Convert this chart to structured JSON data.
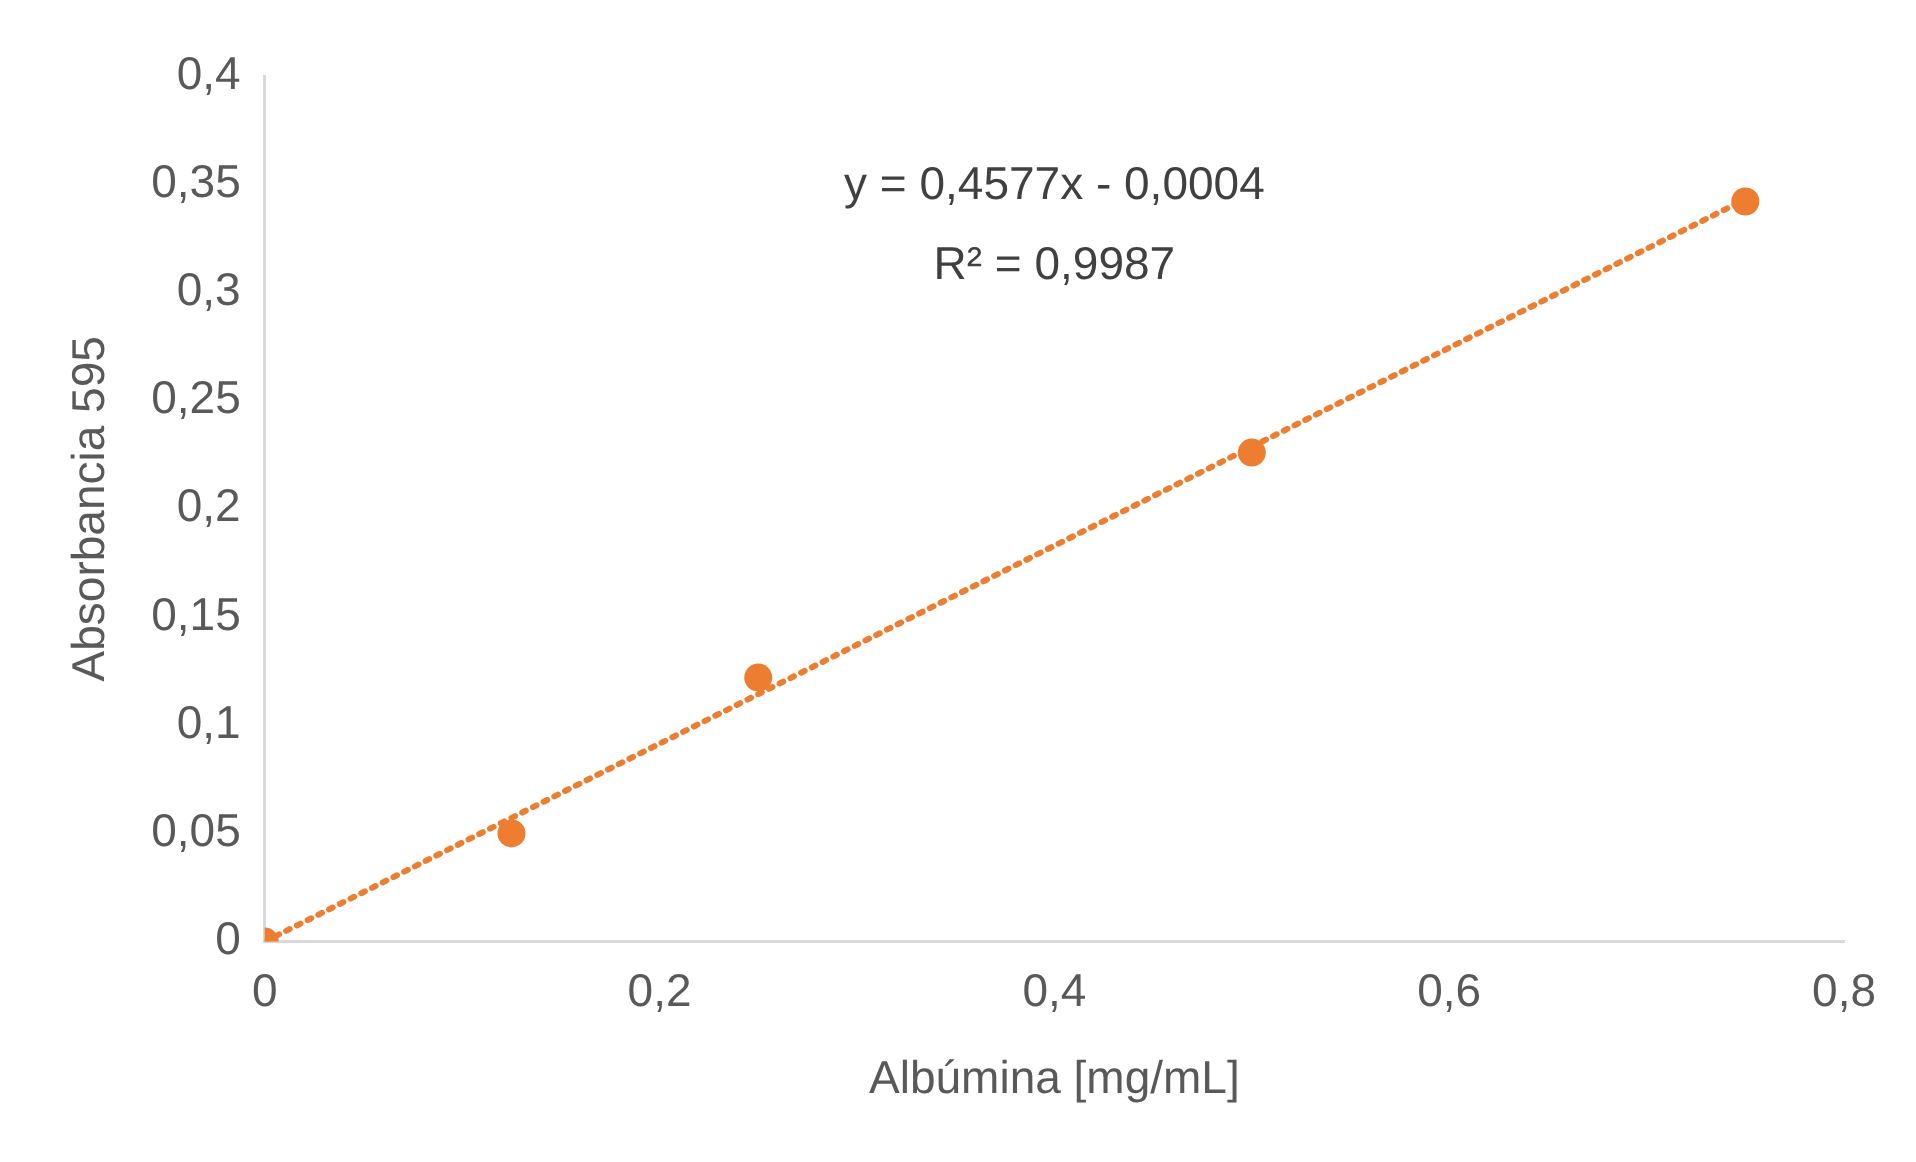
{
  "chart_data": {
    "type": "scatter",
    "xlabel": "Albúmina [mg/mL]",
    "ylabel": "Absorbancia 595",
    "series": [
      {
        "type": "scatter",
        "color": "#ed7d31",
        "x": [
          0,
          0.125,
          0.25,
          0.5,
          0.75
        ],
        "values": [
          0,
          0.05,
          0.122,
          0.226,
          0.342
        ],
        "marker": "circle"
      },
      {
        "type": "line",
        "color": "#ed7d31",
        "x": [
          0,
          0.75
        ],
        "values": [
          0,
          0.343
        ],
        "marker": "none",
        "line_style": "dotted"
      }
    ],
    "xlim": [
      0,
      0.8
    ],
    "xticks": [
      0,
      {
        "value": 0.2,
        "label": "0,2"
      },
      {
        "value": 0.4,
        "label": "0,4"
      },
      {
        "value": 0.6,
        "label": "0,6"
      },
      {
        "value": 0.8,
        "label": "0,8"
      }
    ],
    "ylim": [
      0,
      0.4
    ],
    "yticks": [
      0,
      {
        "value": 0.05,
        "label": "0,05"
      },
      {
        "value": 0.1,
        "label": "0,1"
      },
      {
        "value": 0.15,
        "label": "0,15"
      },
      {
        "value": 0.2,
        "label": "0,2"
      },
      {
        "value": 0.25,
        "label": "0,25"
      },
      {
        "value": 0.3,
        "label": "0,3"
      },
      {
        "value": 0.35,
        "label": "0,35"
      },
      {
        "value": 0.4,
        "label": "0,4"
      }
    ],
    "annotations": [
      "y = 0,4577x - 0,0004",
      "R² = 0,9987"
    ],
    "grid": false,
    "legend": false
  }
}
